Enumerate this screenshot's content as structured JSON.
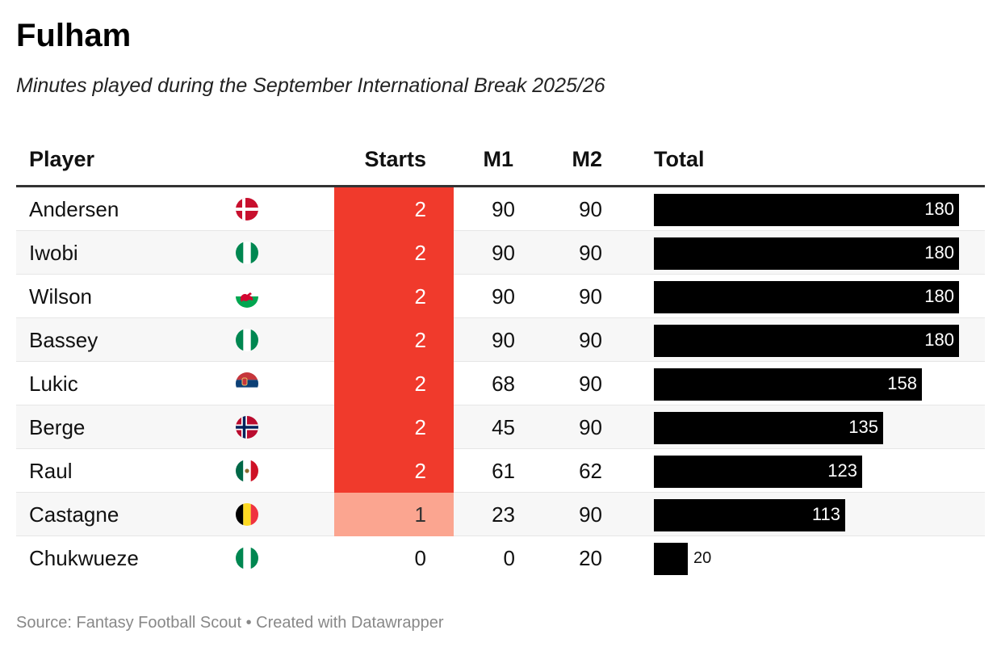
{
  "title": "Fulham",
  "subtitle": "Minutes played during the September International Break 2025/26",
  "source": "Source: Fantasy Football Scout • Created with Datawrapper",
  "colors": {
    "starts_2": "#f03a2c",
    "starts_1": "#fba590",
    "starts_0": "#ffffff",
    "bar": "#000000"
  },
  "chart_data": {
    "type": "table",
    "columns": [
      "Player",
      "Starts",
      "M1",
      "M2",
      "Total"
    ],
    "total_max": 180,
    "rows": [
      {
        "player": "Andersen",
        "flag": "denmark-flag-icon",
        "starts": 2,
        "m1": 90,
        "m2": 90,
        "total": 180
      },
      {
        "player": "Iwobi",
        "flag": "nigeria-flag-icon",
        "starts": 2,
        "m1": 90,
        "m2": 90,
        "total": 180
      },
      {
        "player": "Wilson",
        "flag": "wales-flag-icon",
        "starts": 2,
        "m1": 90,
        "m2": 90,
        "total": 180
      },
      {
        "player": "Bassey",
        "flag": "nigeria-flag-icon",
        "starts": 2,
        "m1": 90,
        "m2": 90,
        "total": 180
      },
      {
        "player": "Lukic",
        "flag": "serbia-flag-icon",
        "starts": 2,
        "m1": 68,
        "m2": 90,
        "total": 158
      },
      {
        "player": "Berge",
        "flag": "norway-flag-icon",
        "starts": 2,
        "m1": 45,
        "m2": 90,
        "total": 135
      },
      {
        "player": "Raul",
        "flag": "mexico-flag-icon",
        "starts": 2,
        "m1": 61,
        "m2": 62,
        "total": 123
      },
      {
        "player": "Castagne",
        "flag": "belgium-flag-icon",
        "starts": 1,
        "m1": 23,
        "m2": 90,
        "total": 113
      },
      {
        "player": "Chukwueze",
        "flag": "nigeria-flag-icon",
        "starts": 0,
        "m1": 0,
        "m2": 20,
        "total": 20
      }
    ]
  }
}
